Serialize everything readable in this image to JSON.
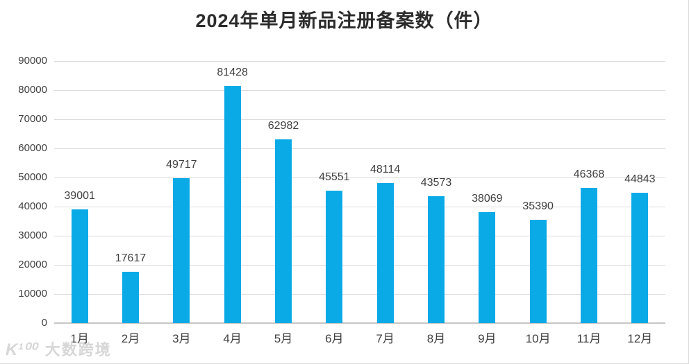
{
  "title": "2024年单月新品注册备案数（件）",
  "watermark": {
    "logo": "K¹⁰⁰",
    "text": "大数跨境"
  },
  "colors": {
    "bar": "#0aaae6",
    "grid": "#dbdbdb",
    "axis_line": "#c6c6c6",
    "tick_label": "#404040",
    "title_text": "#2b2b2b",
    "watermark_text": "#d7d7d7"
  },
  "chart_data": {
    "type": "bar",
    "title": "2024年单月新品注册备案数（件）",
    "categories": [
      "1月",
      "2月",
      "3月",
      "4月",
      "5月",
      "6月",
      "7月",
      "8月",
      "9月",
      "10月",
      "11月",
      "12月"
    ],
    "values": [
      39001,
      17617,
      49717,
      81428,
      62982,
      45551,
      48114,
      43573,
      38069,
      35390,
      46368,
      44843
    ],
    "xlabel": "",
    "ylabel": "",
    "ylim": [
      0,
      90000
    ],
    "yticks": [
      0,
      10000,
      20000,
      30000,
      40000,
      50000,
      60000,
      70000,
      80000,
      90000
    ],
    "grid": true,
    "data_labels": true,
    "legend_position": "none"
  }
}
